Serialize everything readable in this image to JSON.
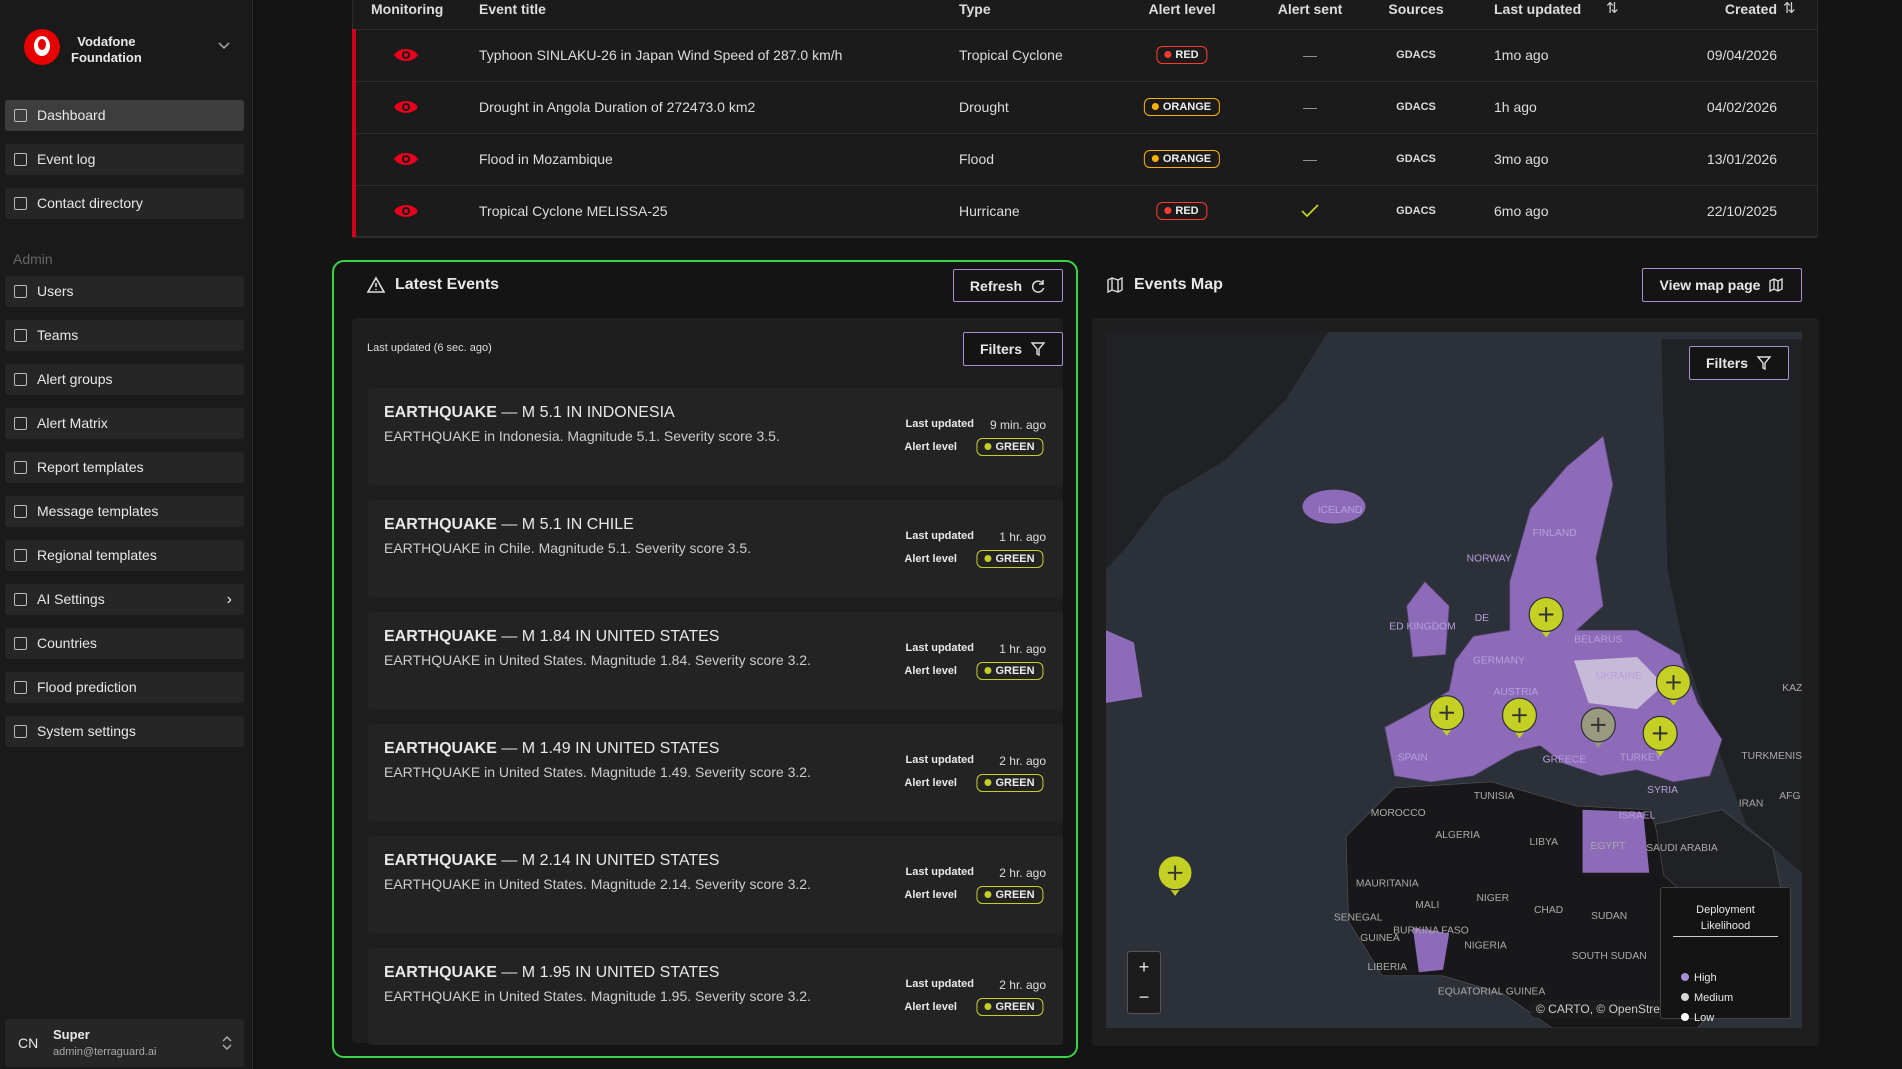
{
  "sidebar": {
    "org": [
      "Vodafone",
      "Foundation"
    ],
    "nav": [
      "Dashboard",
      "Event log",
      "Contact directory"
    ],
    "admin_label": "Admin",
    "admin_nav": [
      "Users",
      "Teams",
      "Alert groups",
      "Alert Matrix",
      "Report templates",
      "Message templates",
      "Regional templates",
      "AI Settings",
      "Countries",
      "Flood prediction",
      "System settings"
    ],
    "user": {
      "initials": "CN",
      "name": "Super",
      "email": "admin@terraguard.ai"
    }
  },
  "table": {
    "columns": [
      "Monitoring",
      "Event title",
      "Type",
      "Alert level",
      "Alert sent",
      "Sources",
      "Last updated",
      "Created"
    ],
    "rows": [
      {
        "title": "Typhoon SINLAKU-26 in Japan Wind Speed of 287.0 km/h",
        "type": "Tropical Cyclone",
        "level": "RED",
        "sent": "—",
        "source": "GDACS",
        "updated": "1mo ago",
        "created": "09/04/2026"
      },
      {
        "title": "Drought in Angola Duration of 272473.0 km2",
        "type": "Drought",
        "level": "ORANGE",
        "sent": "—",
        "source": "GDACS",
        "updated": "1h ago",
        "created": "04/02/2026"
      },
      {
        "title": "Flood in Mozambique",
        "type": "Flood",
        "level": "ORANGE",
        "sent": "—",
        "source": "GDACS",
        "updated": "3mo ago",
        "created": "13/01/2026"
      },
      {
        "title": "Tropical Cyclone MELISSA-25",
        "type": "Hurricane",
        "level": "RED",
        "source": "GDACS",
        "updated": "6mo ago",
        "created": "22/10/2025"
      }
    ]
  },
  "latest": {
    "title": "Latest Events",
    "refresh": "Refresh",
    "note": "Last updated (6 sec. ago)",
    "filters": "Filters",
    "updated_label": "Last updated",
    "level_label": "Alert level",
    "events": [
      {
        "kind": "EARTHQUAKE",
        "headline": "— M 5.1 IN INDONESIA",
        "desc": "EARTHQUAKE in Indonesia. Magnitude 5.1. Severity score 3.5.",
        "time": "9 min. ago",
        "level": "GREEN"
      },
      {
        "kind": "EARTHQUAKE",
        "headline": "— M 5.1 IN CHILE",
        "desc": "EARTHQUAKE in Chile. Magnitude 5.1. Severity score 3.5.",
        "time": "1 hr. ago",
        "level": "GREEN"
      },
      {
        "kind": "EARTHQUAKE",
        "headline": "— M 1.84 IN UNITED STATES",
        "desc": "EARTHQUAKE in United States. Magnitude 1.84. Severity score 3.2.",
        "time": "1 hr. ago",
        "level": "GREEN"
      },
      {
        "kind": "EARTHQUAKE",
        "headline": "— M 1.49 IN UNITED STATES",
        "desc": "EARTHQUAKE in United States. Magnitude 1.49. Severity score 3.2.",
        "time": "2 hr. ago",
        "level": "GREEN"
      },
      {
        "kind": "EARTHQUAKE",
        "headline": "— M 2.14 IN UNITED STATES",
        "desc": "EARTHQUAKE in United States. Magnitude 2.14. Severity score 3.2.",
        "time": "2 hr. ago",
        "level": "GREEN"
      },
      {
        "kind": "EARTHQUAKE",
        "headline": "— M 1.95 IN UNITED STATES",
        "desc": "EARTHQUAKE in United States. Magnitude 1.95. Severity score 3.2.",
        "time": "2 hr. ago",
        "level": "GREEN"
      }
    ]
  },
  "map": {
    "title": "Events Map",
    "view": "View map page",
    "filters": "Filters",
    "zoom_in": "+",
    "zoom_out": "−",
    "attribution": "© CARTO, © OpenStre",
    "legend_title": [
      "Deployment",
      "Likelihood"
    ],
    "legend_items": [
      "High",
      "Medium",
      "Low"
    ],
    "labels": [
      "ICELAND",
      "FINLAND",
      "NORWAY",
      "DE",
      "ED KINGDOM",
      "BELARUS",
      "GERMANY",
      "UKRAINE",
      "AUSTRIA",
      "SPAIN",
      "GREECE",
      "TURKEY",
      "SYRIA",
      "ISRAEL",
      "TURKMENIS",
      "IRAN",
      "KAZ",
      "AFG",
      "TUNISIA",
      "MOROCCO",
      "ALGERIA",
      "LIBYA",
      "EGYPT",
      "SAUDI ARABIA",
      "MAURITANIA",
      "MALI",
      "NIGER",
      "CHAD",
      "SUDAN",
      "SENEGAL",
      "BURKINA FASO",
      "GUINEA",
      "NIGERIA",
      "SOUTH SUDAN",
      "LIBERIA",
      "EQUATORIAL GUINEA"
    ]
  }
}
